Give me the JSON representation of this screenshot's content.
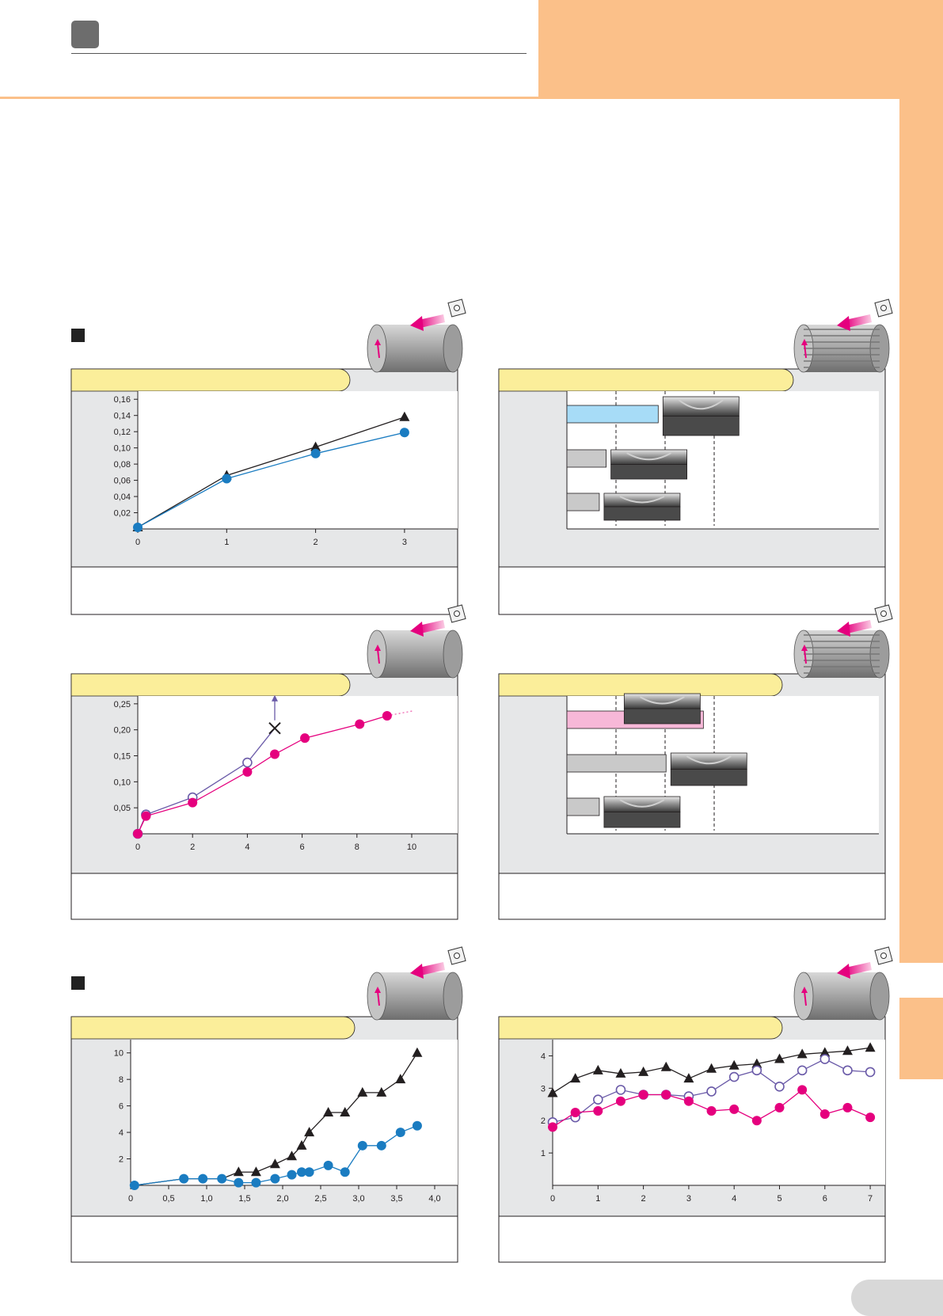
{
  "colors": {
    "orange": "#fbc089",
    "yellow": "#fbee9a",
    "panel_gray": "#e6e7e8",
    "blue": "#1a7cc1",
    "magenta": "#e5007e",
    "purple": "#6a5aa8",
    "black": "#231f20",
    "light_blue": "#a7dcf7",
    "pink": "#f7b8d8",
    "bar_gray": "#c9c9c9"
  },
  "icons": [
    "section-square-icon",
    "workpiece-cylinder-icon",
    "workpiece-grooved-cylinder-icon",
    "insert-icon",
    "feed-arrow-icon"
  ],
  "chart_data": [
    {
      "id": "chart1",
      "type": "line",
      "ylim": [
        0,
        0.17
      ],
      "yticks": [
        "0,02",
        "0,04",
        "0,06",
        "0,08",
        "0,10",
        "0,12",
        "0,14",
        "0,16"
      ],
      "ytick_values": [
        0.02,
        0.04,
        0.06,
        0.08,
        0.1,
        0.12,
        0.14,
        0.16
      ],
      "xlim": [
        0,
        3.5
      ],
      "xticks": [
        "0",
        "1",
        "2",
        "3"
      ],
      "xtick_values": [
        0,
        1,
        2,
        3
      ],
      "series": [
        {
          "marker": "triangle",
          "color": "#231f20",
          "x": [
            0,
            1,
            2,
            3
          ],
          "y": [
            0.002,
            0.066,
            0.101,
            0.138
          ]
        },
        {
          "marker": "circle",
          "color": "#1a7cc1",
          "x": [
            0,
            1,
            2,
            3
          ],
          "y": [
            0.002,
            0.062,
            0.093,
            0.119
          ]
        }
      ]
    },
    {
      "id": "chart3",
      "type": "line",
      "ylim": [
        0,
        0.265
      ],
      "yticks": [
        "0,05",
        "0,10",
        "0,15",
        "0,20",
        "0,25"
      ],
      "ytick_values": [
        0.05,
        0.1,
        0.15,
        0.2,
        0.25
      ],
      "xlim": [
        0,
        12
      ],
      "xticks": [
        "0",
        "2",
        "4",
        "6",
        "8",
        "10"
      ],
      "xtick_values": [
        0,
        2,
        4,
        6,
        8,
        10
      ],
      "series": [
        {
          "marker": "open-circle",
          "color": "#6a5aa8",
          "x": [
            0,
            0.3,
            2,
            4,
            5
          ],
          "y": [
            0.0,
            0.037,
            0.07,
            0.137,
            0.203
          ],
          "end_marker": "cross",
          "up_arrow": true
        },
        {
          "marker": "circle",
          "color": "#e5007e",
          "x": [
            0,
            0.3,
            2,
            4,
            5,
            6.1,
            8.1,
            9.1
          ],
          "y": [
            0.0,
            0.034,
            0.06,
            0.119,
            0.153,
            0.184,
            0.211,
            0.227
          ],
          "dotted_tail": true
        }
      ]
    },
    {
      "id": "chart5",
      "type": "line",
      "ylim": [
        0,
        11
      ],
      "yticks": [
        "2",
        "4",
        "6",
        "8",
        "10"
      ],
      "ytick_values": [
        2,
        4,
        6,
        8,
        10
      ],
      "xlim": [
        0,
        4.2
      ],
      "xticks": [
        "0",
        "0,5",
        "1,0",
        "1,5",
        "2,0",
        "2,5",
        "3,0",
        "3,5",
        "4,0"
      ],
      "xtick_values": [
        0,
        0.5,
        1.0,
        1.5,
        2.0,
        2.5,
        3.0,
        3.5,
        4.0
      ],
      "series": [
        {
          "marker": "triangle",
          "color": "#231f20",
          "x": [
            1.42,
            1.65,
            1.9,
            2.12,
            2.25,
            2.35,
            2.6,
            2.82,
            3.05,
            3.3,
            3.55,
            3.77
          ],
          "y": [
            1.0,
            1.0,
            1.6,
            2.2,
            3.0,
            4.0,
            5.5,
            5.5,
            7.0,
            7.0,
            8.0,
            10.0
          ],
          "lead_x": [
            0.05,
            0.7,
            0.95,
            1.2,
            1.42
          ],
          "lead_y": [
            0,
            0.5,
            0.5,
            0.5,
            1.0
          ]
        },
        {
          "marker": "circle",
          "color": "#1a7cc1",
          "x": [
            0.05,
            0.7,
            0.95,
            1.2,
            1.42,
            1.65,
            1.9,
            2.12,
            2.25,
            2.35,
            2.6,
            2.82,
            3.05,
            3.3,
            3.55,
            3.77
          ],
          "y": [
            0.0,
            0.5,
            0.5,
            0.5,
            0.2,
            0.2,
            0.5,
            0.8,
            1.0,
            1.0,
            1.5,
            1.0,
            3.0,
            3.0,
            4.0,
            4.5
          ]
        }
      ]
    },
    {
      "id": "chart6",
      "type": "line",
      "ylim": [
        0,
        4.5
      ],
      "yticks": [
        "1",
        "2",
        "3",
        "4"
      ],
      "ytick_values": [
        1,
        2,
        3,
        4
      ],
      "xlim": [
        0,
        7.3
      ],
      "xticks": [
        "0",
        "1",
        "2",
        "3",
        "4",
        "5",
        "6",
        "7"
      ],
      "xtick_values": [
        0,
        1,
        2,
        3,
        4,
        5,
        6,
        7
      ],
      "series": [
        {
          "marker": "triangle",
          "color": "#231f20",
          "x": [
            0,
            0.5,
            1,
            1.5,
            2,
            2.5,
            3,
            3.5,
            4,
            4.5,
            5,
            5.5,
            6,
            6.5,
            7
          ],
          "y": [
            2.85,
            3.3,
            3.55,
            3.45,
            3.5,
            3.65,
            3.3,
            3.6,
            3.7,
            3.75,
            3.9,
            4.05,
            4.1,
            4.15,
            4.25
          ]
        },
        {
          "marker": "open-circle",
          "color": "#6a5aa8",
          "x": [
            0,
            0.5,
            1,
            1.5,
            2,
            2.5,
            3,
            3.5,
            4,
            4.5,
            5,
            5.5,
            6,
            6.5,
            7
          ],
          "y": [
            1.95,
            2.1,
            2.65,
            2.95,
            2.8,
            2.8,
            2.75,
            2.9,
            3.35,
            3.55,
            3.05,
            3.55,
            3.9,
            3.55,
            3.5
          ]
        },
        {
          "marker": "circle",
          "color": "#e5007e",
          "x": [
            0,
            0.5,
            1,
            1.5,
            2,
            2.5,
            3,
            3.5,
            4,
            4.5,
            5,
            5.5,
            6,
            6.5,
            7
          ],
          "y": [
            1.8,
            2.25,
            2.3,
            2.6,
            2.8,
            2.8,
            2.6,
            2.3,
            2.35,
            2.0,
            2.4,
            2.95,
            2.2,
            2.4,
            2.1
          ]
        }
      ]
    }
  ],
  "bar_charts": [
    {
      "id": "chart2",
      "bars": [
        {
          "value": 0.93,
          "color": "#a7dcf7"
        },
        {
          "value": 0.4,
          "color": "#c9c9c9"
        },
        {
          "value": 0.33,
          "color": "#c9c9c9"
        }
      ],
      "gridlines": [
        0.5,
        1.0,
        1.5
      ]
    },
    {
      "id": "chart4",
      "bars": [
        {
          "value": 1.39,
          "color": "#f7b8d8"
        },
        {
          "value": 1.01,
          "color": "#c9c9c9"
        },
        {
          "value": 0.33,
          "color": "#c9c9c9"
        }
      ],
      "gridlines": [
        0.5,
        1.0,
        1.5
      ]
    }
  ]
}
